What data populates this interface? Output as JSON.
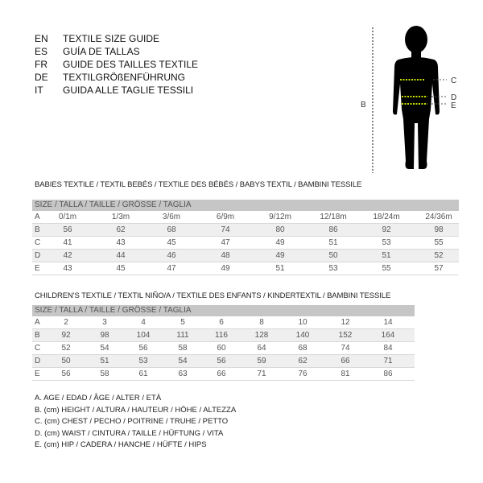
{
  "titles": [
    {
      "code": "EN",
      "text": "TEXTILE SIZE GUIDE"
    },
    {
      "code": "ES",
      "text": "GUÍA DE TALLAS"
    },
    {
      "code": "FR",
      "text": "GUIDE DES TAILLES TEXTILE"
    },
    {
      "code": "DE",
      "text": "TEXTILGRÖßENFÜHRUNG"
    },
    {
      "code": "IT",
      "text": "GUIDA ALLE TAGLIE TESSILI"
    }
  ],
  "figure": {
    "height_label": "B",
    "labels": [
      "C",
      "D",
      "E"
    ],
    "measure_line_color": "#c8e000"
  },
  "babies": {
    "title": "BABIES TEXTILE / TEXTIL BEBÉS / TEXTILE DES BÉBÉS / BABYS TEXTIL  / BAMBINI TESSILE",
    "header": "SIZE / TALLA / TAILLE / GRÖSSE / TAGLIA",
    "rows": [
      {
        "label": "A",
        "values": [
          "0/1m",
          "1/3m",
          "3/6m",
          "6/9m",
          "9/12m",
          "12/18m",
          "18/24m",
          "24/36m"
        ]
      },
      {
        "label": "B",
        "values": [
          "56",
          "62",
          "68",
          "74",
          "80",
          "86",
          "92",
          "98"
        ]
      },
      {
        "label": "C",
        "values": [
          "41",
          "43",
          "45",
          "47",
          "49",
          "51",
          "53",
          "55"
        ]
      },
      {
        "label": "D",
        "values": [
          "42",
          "44",
          "46",
          "48",
          "49",
          "50",
          "51",
          "52"
        ]
      },
      {
        "label": "E",
        "values": [
          "43",
          "45",
          "47",
          "49",
          "51",
          "53",
          "55",
          "57"
        ]
      }
    ]
  },
  "children": {
    "title": "CHILDREN'S TEXTILE / TEXTIL NIÑO/A / TEXTILE DES ENFANTS / KINDERTEXTIL / BAMBINI TESSILE",
    "header": "SIZE / TALLA / TAILLE / GRÖSSE / TAGLIA",
    "rows": [
      {
        "label": "A",
        "values": [
          "2",
          "3",
          "4",
          "5",
          "6",
          "8",
          "10",
          "12",
          "14"
        ]
      },
      {
        "label": "B",
        "values": [
          "92",
          "98",
          "104",
          "111",
          "116",
          "128",
          "140",
          "152",
          "164"
        ]
      },
      {
        "label": "C",
        "values": [
          "52",
          "54",
          "56",
          "58",
          "60",
          "64",
          "68",
          "74",
          "84"
        ]
      },
      {
        "label": "D",
        "values": [
          "50",
          "51",
          "53",
          "54",
          "56",
          "59",
          "62",
          "66",
          "71"
        ]
      },
      {
        "label": "E",
        "values": [
          "56",
          "58",
          "61",
          "63",
          "66",
          "71",
          "76",
          "81",
          "86"
        ]
      }
    ]
  },
  "legend": [
    "A. AGE / EDAD / ÂGE / ALTER / ETÀ",
    "B. (cm) HEIGHT / ALTURA / HAUTEUR / HÖHE / ALTEZZA",
    "C. (cm) CHEST / PECHO / POITRINE / TRUHE / PETTO",
    "D. (cm) WAIST / CINTURA / TAILLE / HÜFTUNG / VITA",
    "E. (cm) HIP / CADERA / HANCHE / HÜFTE / HIPS"
  ]
}
